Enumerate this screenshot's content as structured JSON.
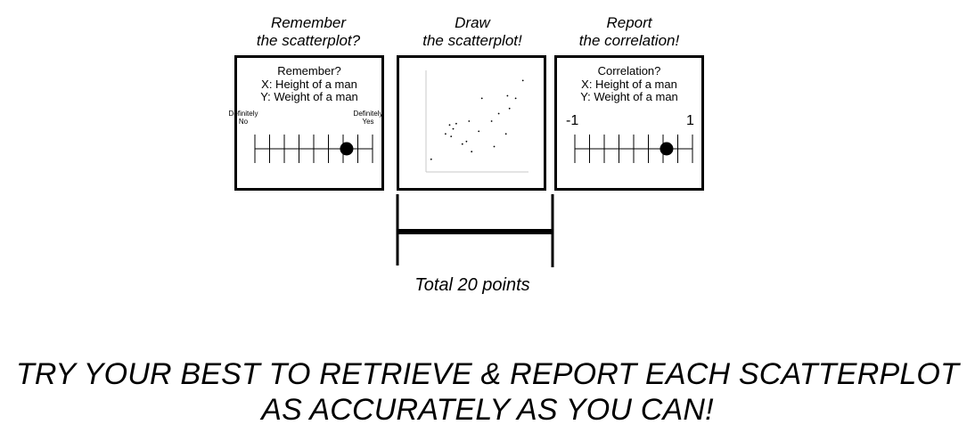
{
  "steps": [
    {
      "title_line1": "Remember",
      "title_line2": "the scatterplot?",
      "panel": {
        "question": "Remember?",
        "x_text": "X: Height of a man",
        "y_text": "Y: Weight of a man",
        "left_label_line1": "Definitely",
        "left_label_line2": "No",
        "right_label_line1": "Definitely",
        "right_label_line2": "Yes",
        "scale_ticks": 9,
        "selected_fraction": 0.78
      }
    },
    {
      "title_line1": "Draw",
      "title_line2": "the scatterplot!",
      "panel": {
        "points": [
          {
            "x": 1,
            "y": 10
          },
          {
            "x": 3.8,
            "y": 20
          },
          {
            "x": 4.6,
            "y": 23.5
          },
          {
            "x": 4.9,
            "y": 19
          },
          {
            "x": 5.3,
            "y": 22
          },
          {
            "x": 5.9,
            "y": 24
          },
          {
            "x": 7.1,
            "y": 16
          },
          {
            "x": 7.9,
            "y": 17
          },
          {
            "x": 8.4,
            "y": 25
          },
          {
            "x": 8.9,
            "y": 13
          },
          {
            "x": 10.3,
            "y": 21
          },
          {
            "x": 10.9,
            "y": 34
          },
          {
            "x": 12.8,
            "y": 25
          },
          {
            "x": 13.3,
            "y": 15
          },
          {
            "x": 14.2,
            "y": 28
          },
          {
            "x": 15.6,
            "y": 20
          },
          {
            "x": 15.9,
            "y": 35
          },
          {
            "x": 16.3,
            "y": 30
          },
          {
            "x": 17.5,
            "y": 34
          },
          {
            "x": 18.9,
            "y": 41
          }
        ]
      }
    },
    {
      "title_line1": "Report",
      "title_line2": "the correlation!",
      "panel": {
        "question": "Correlation?",
        "x_text": "X: Height of a man",
        "y_text": "Y: Weight of a man",
        "min_label": "-1",
        "max_label": "1",
        "scale_ticks": 9,
        "selected_fraction": 0.78
      }
    }
  ],
  "bracket_label": "Total 20 points",
  "message_line1": "TRY YOUR BEST TO RETRIEVE & REPORT EACH SCATTERPLOT",
  "message_line2": "AS ACCURATELY AS YOU CAN!"
}
